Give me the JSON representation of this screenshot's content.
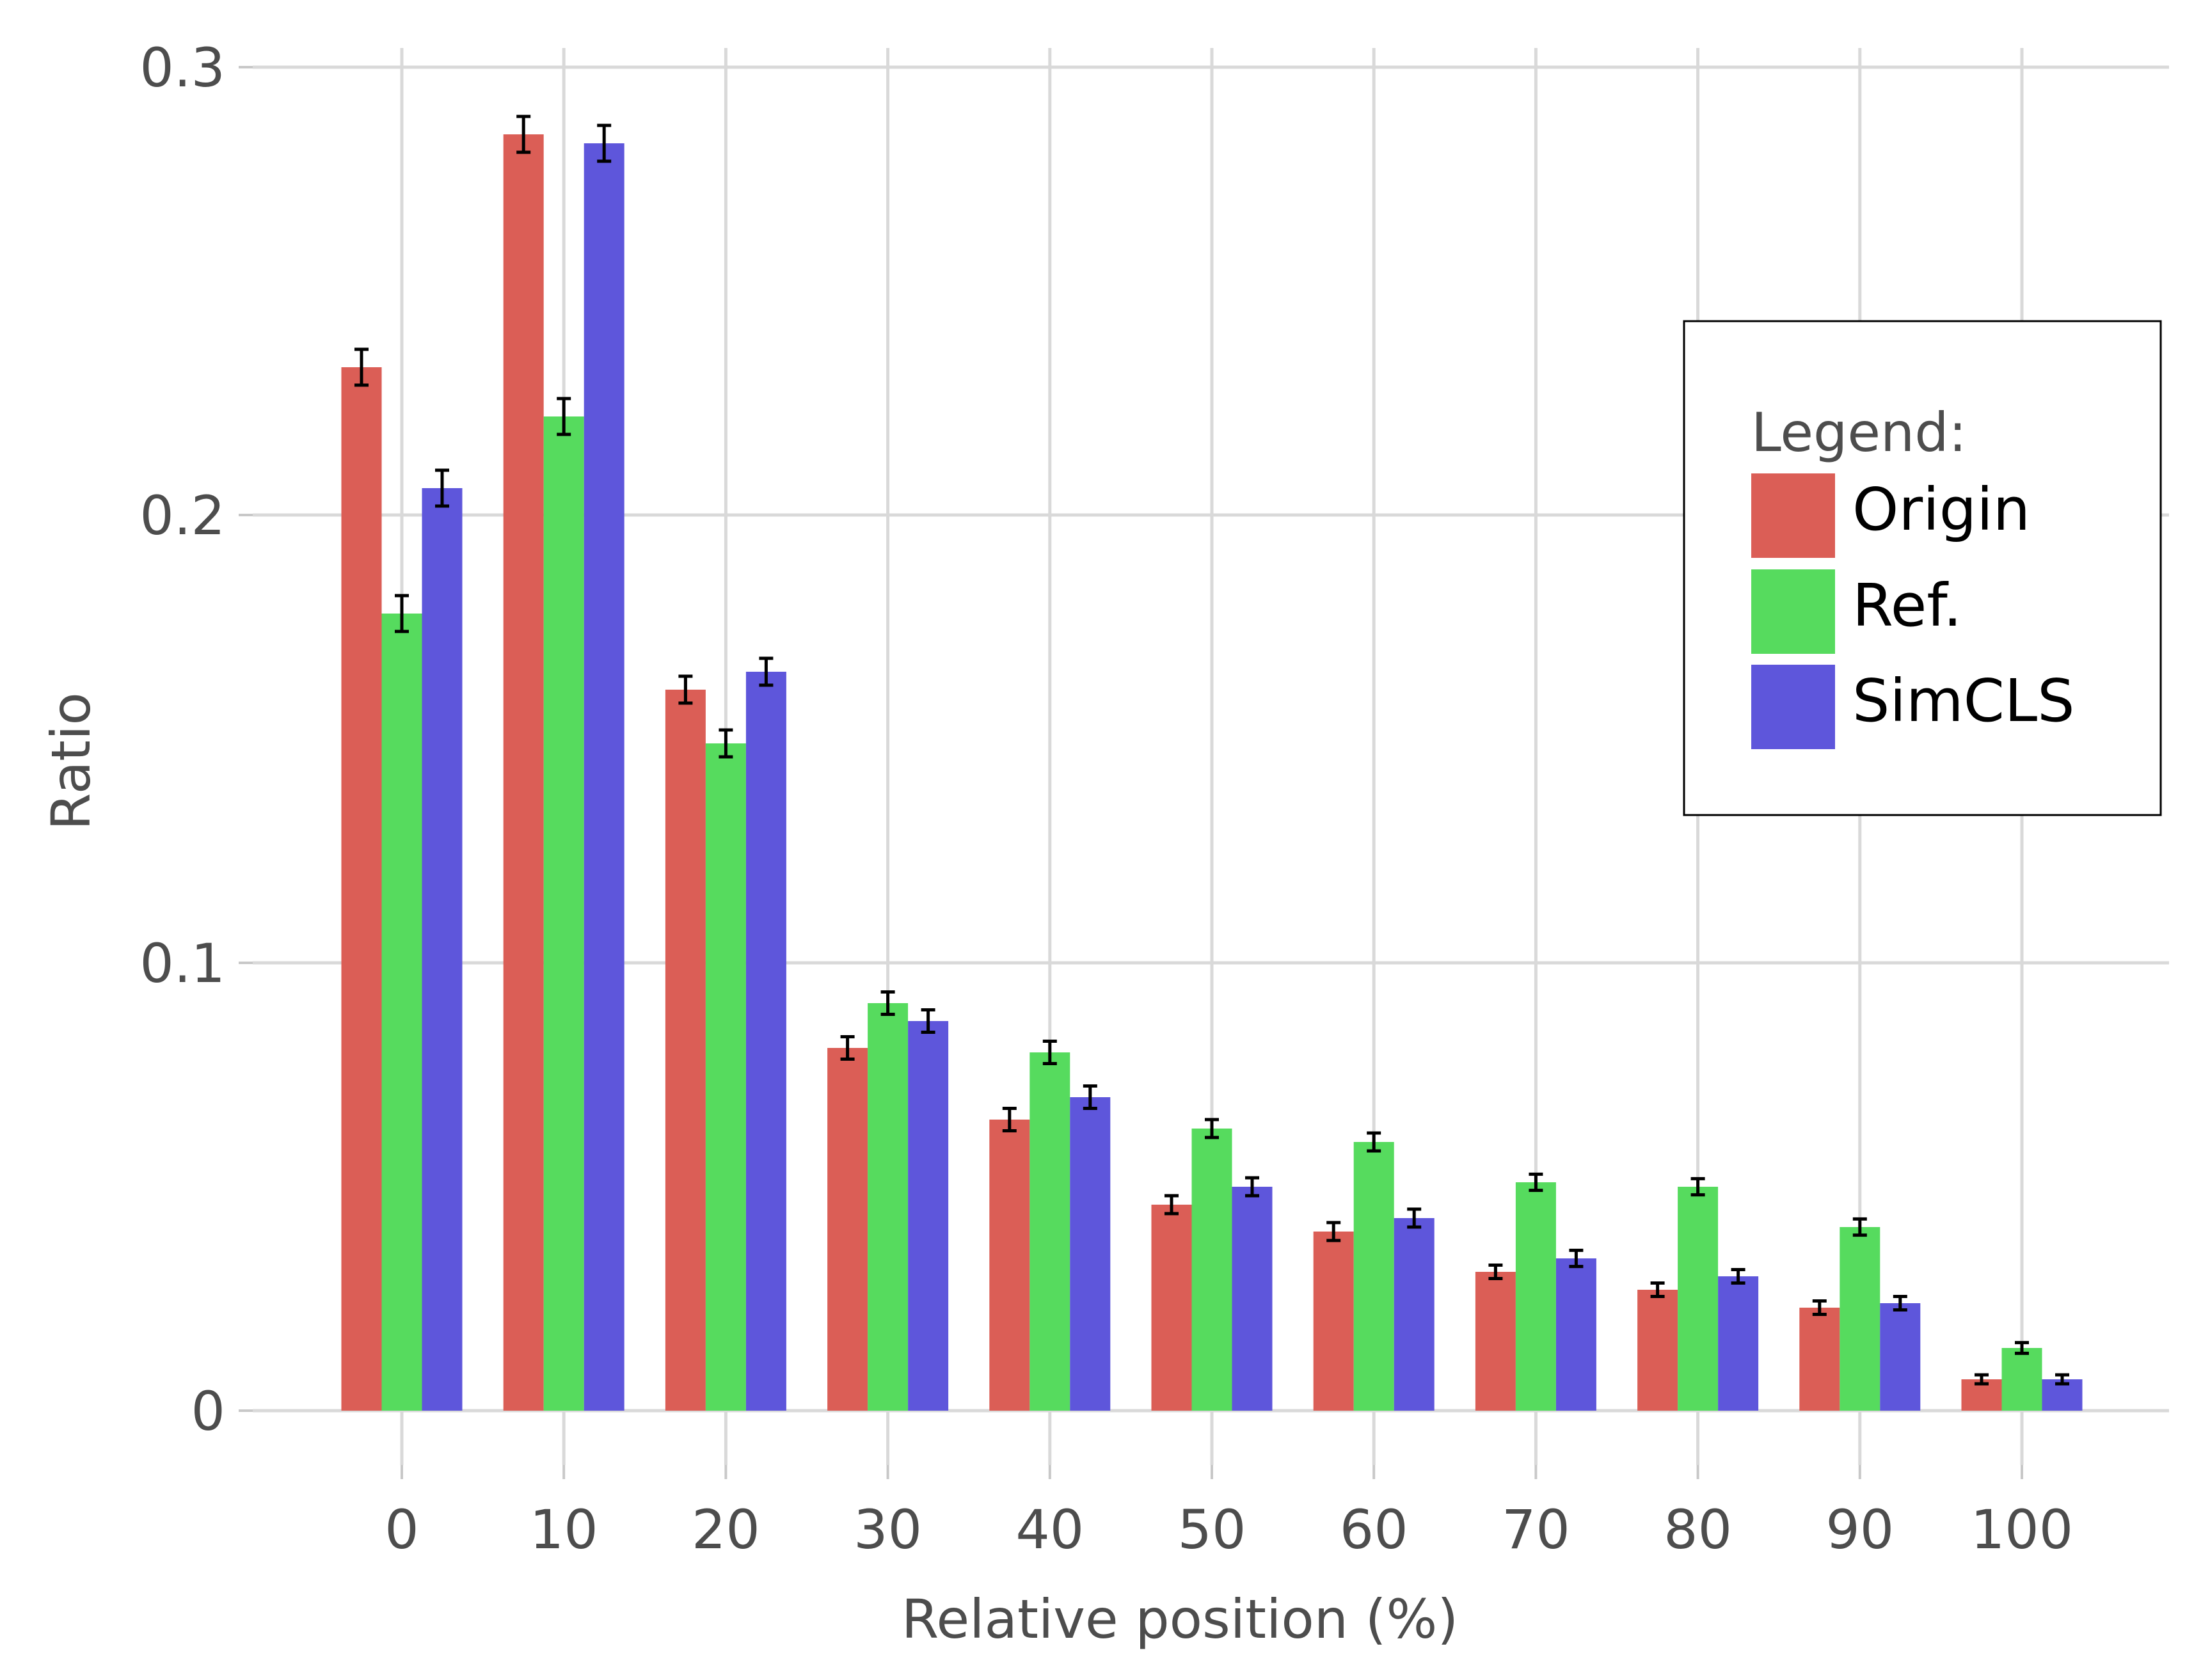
{
  "chart_data": {
    "type": "bar",
    "title": "",
    "xlabel": "Relative position (%)",
    "ylabel": "Ratio",
    "categories": [
      "0",
      "10",
      "20",
      "30",
      "40",
      "50",
      "60",
      "70",
      "80",
      "90",
      "100"
    ],
    "ylim": [
      -0.0095,
      0.3005
    ],
    "yticks": [
      0,
      0.1,
      0.2,
      0.3
    ],
    "ytick_labels": [
      "0",
      "0.1",
      "0.2",
      "0.3"
    ],
    "grid": true,
    "legend": {
      "title": "Legend:",
      "position": "right",
      "entries": [
        "Origin",
        "Ref.",
        "SimCLS"
      ]
    },
    "series": [
      {
        "name": "Origin",
        "color": "#db5e56",
        "values": [
          0.233,
          0.285,
          0.161,
          0.081,
          0.065,
          0.046,
          0.04,
          0.031,
          0.027,
          0.023,
          0.007
        ],
        "errors": [
          0.004,
          0.004,
          0.003,
          0.0025,
          0.0025,
          0.002,
          0.002,
          0.0015,
          0.0015,
          0.0015,
          0.001
        ]
      },
      {
        "name": "Ref.",
        "color": "#56db5e",
        "values": [
          0.178,
          0.222,
          0.149,
          0.091,
          0.08,
          0.063,
          0.06,
          0.051,
          0.05,
          0.041,
          0.014
        ],
        "errors": [
          0.004,
          0.004,
          0.003,
          0.0025,
          0.0025,
          0.002,
          0.002,
          0.0018,
          0.0018,
          0.0018,
          0.0012
        ]
      },
      {
        "name": "SimCLS",
        "color": "#5e56db",
        "values": [
          0.206,
          0.283,
          0.165,
          0.087,
          0.07,
          0.05,
          0.043,
          0.034,
          0.03,
          0.024,
          0.007
        ],
        "errors": [
          0.004,
          0.004,
          0.003,
          0.0025,
          0.0025,
          0.002,
          0.002,
          0.0018,
          0.0015,
          0.0015,
          0.001
        ]
      }
    ]
  }
}
